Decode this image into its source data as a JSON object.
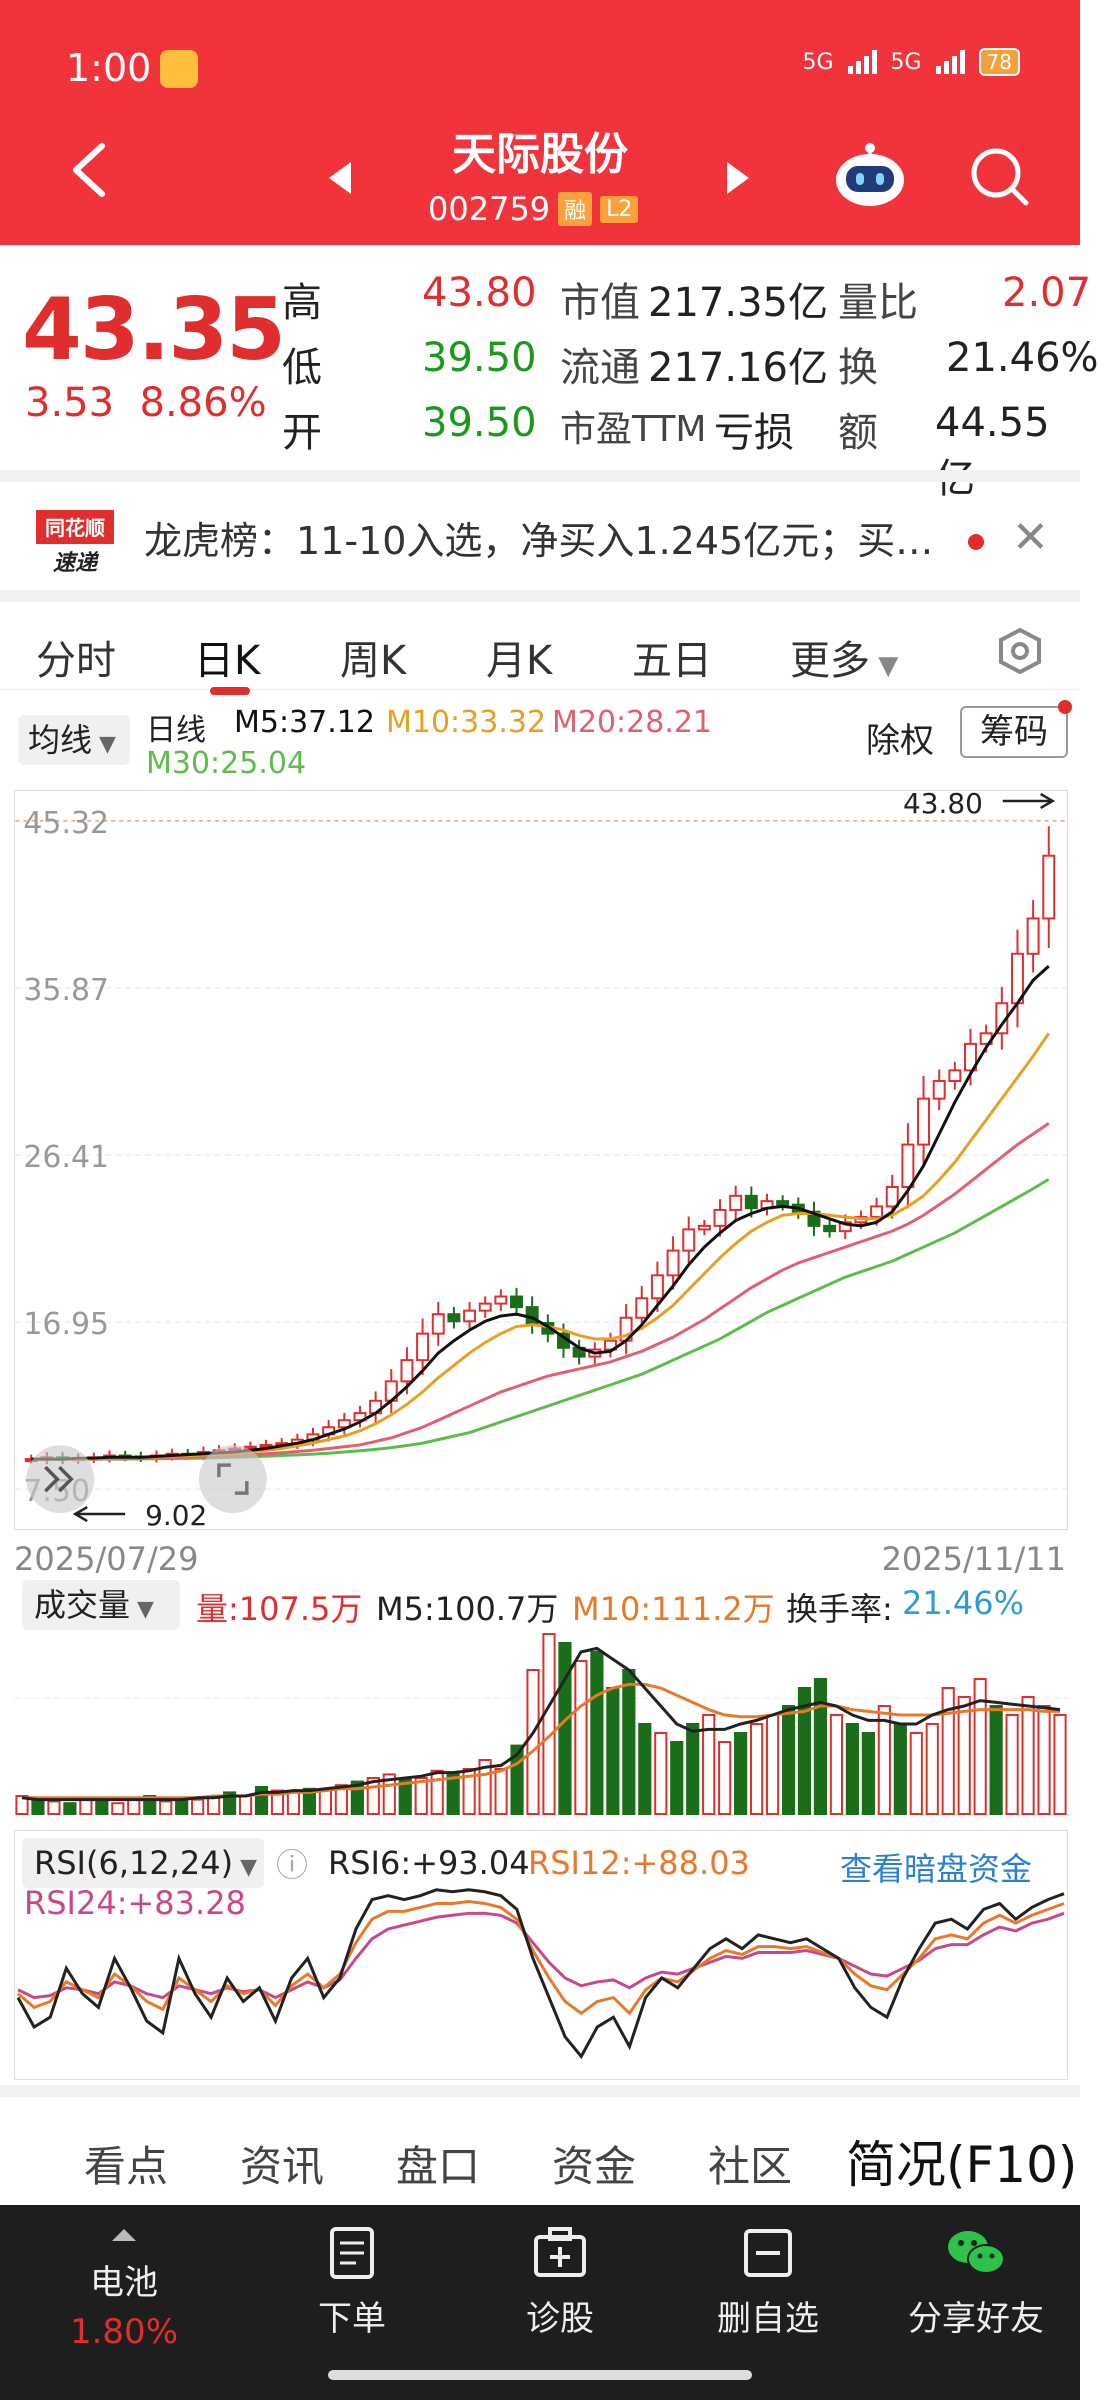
{
  "status": {
    "time": "1:00",
    "net1": "5G",
    "net2": "5G",
    "battery": "78"
  },
  "header": {
    "title": "天际股份",
    "code": "002759",
    "tag1": "融",
    "tag2": "L2"
  },
  "quote": {
    "price": "43.35",
    "change": "3.53",
    "change_pct": "8.86%",
    "high_label": "高",
    "high": "43.80",
    "low_label": "低",
    "low": "39.50",
    "open_label": "开",
    "open": "39.50",
    "mcap_label": "市值",
    "mcap": "217.35亿",
    "float_label": "流通",
    "float": "217.16亿",
    "pe_label": "市盈TTM",
    "pe": "亏损",
    "vr_label": "量比",
    "vr": "2.07",
    "turn_label": "换",
    "turn": "21.46%",
    "amt_label": "额",
    "amt": "44.55亿"
  },
  "news": {
    "logo_top": "同花顺",
    "logo_bottom": "速递",
    "text": "龙虎榜：11-10入选，净买入1.245亿元；买…"
  },
  "tabs": [
    "分时",
    "日K",
    "周K",
    "月K",
    "五日",
    "更多"
  ],
  "ma": {
    "selector": "均线",
    "period": "日线",
    "m5": "M5:37.12",
    "m10": "M10:33.32",
    "m20": "M20:28.21",
    "m30": "M30:25.04",
    "fq": "除权",
    "chip": "筹码"
  },
  "chart_data": {
    "type": "candlestick",
    "title": "",
    "y_ticks": [
      "45.32",
      "35.87",
      "26.41",
      "16.95",
      "7.50"
    ],
    "ylim": [
      7.5,
      45.32
    ],
    "high_marker": "43.80",
    "low_marker": "9.02",
    "start_date": "2025/07/29",
    "end_date": "2025/11/11",
    "close_series": [
      9.2,
      9.3,
      9.2,
      9.25,
      9.3,
      9.4,
      9.35,
      9.3,
      9.4,
      9.5,
      9.45,
      9.6,
      9.7,
      9.8,
      9.9,
      10.0,
      10.1,
      10.3,
      10.6,
      11.0,
      11.4,
      11.8,
      12.5,
      13.6,
      14.8,
      16.3,
      17.4,
      17.0,
      17.6,
      18.0,
      18.4,
      17.8,
      16.9,
      16.3,
      15.5,
      15.0,
      15.4,
      15.9,
      17.2,
      18.3,
      19.6,
      21.0,
      22.2,
      22.4,
      23.3,
      24.1,
      23.4,
      23.8,
      23.6,
      23.2,
      22.4,
      22.1,
      22.6,
      22.9,
      23.5,
      24.6,
      27.0,
      29.6,
      30.6,
      31.2,
      32.7,
      33.3,
      35.0,
      37.8,
      39.8,
      43.35
    ],
    "ma5_series": [
      9.2,
      9.2,
      9.2,
      9.25,
      9.25,
      9.3,
      9.3,
      9.3,
      9.35,
      9.4,
      9.45,
      9.5,
      9.55,
      9.6,
      9.7,
      9.8,
      9.95,
      10.1,
      10.3,
      10.6,
      10.9,
      11.3,
      11.8,
      12.5,
      13.3,
      14.2,
      15.2,
      15.9,
      16.5,
      17.0,
      17.3,
      17.4,
      17.2,
      16.7,
      16.1,
      15.5,
      15.2,
      15.3,
      15.9,
      16.8,
      17.9,
      19.0,
      20.2,
      21.2,
      22.0,
      22.7,
      23.1,
      23.4,
      23.5,
      23.4,
      23.1,
      22.8,
      22.5,
      22.4,
      22.6,
      23.2,
      24.4,
      25.8,
      27.6,
      29.4,
      31.0,
      32.5,
      33.8,
      35.0,
      36.3,
      37.1
    ],
    "ma10_series": [
      9.2,
      9.2,
      9.2,
      9.2,
      9.22,
      9.25,
      9.27,
      9.3,
      9.32,
      9.35,
      9.38,
      9.42,
      9.47,
      9.52,
      9.6,
      9.7,
      9.8,
      9.95,
      10.1,
      10.3,
      10.5,
      10.8,
      11.2,
      11.7,
      12.3,
      13.0,
      13.8,
      14.5,
      15.2,
      15.8,
      16.3,
      16.7,
      16.8,
      16.7,
      16.5,
      16.2,
      16.0,
      16.0,
      16.2,
      16.6,
      17.2,
      17.9,
      18.8,
      19.7,
      20.6,
      21.4,
      22.1,
      22.6,
      23.0,
      23.1,
      23.1,
      23.0,
      22.9,
      22.8,
      22.8,
      23.0,
      23.5,
      24.1,
      25.0,
      26.0,
      27.2,
      28.4,
      29.6,
      30.8,
      32.0,
      33.3
    ],
    "ma20_series": [
      9.2,
      9.2,
      9.2,
      9.2,
      9.2,
      9.21,
      9.22,
      9.23,
      9.25,
      9.27,
      9.3,
      9.33,
      9.36,
      9.4,
      9.44,
      9.5,
      9.56,
      9.63,
      9.7,
      9.8,
      9.9,
      10.0,
      10.2,
      10.4,
      10.7,
      11.0,
      11.4,
      11.8,
      12.2,
      12.6,
      13.0,
      13.3,
      13.6,
      13.9,
      14.1,
      14.3,
      14.5,
      14.7,
      15.0,
      15.3,
      15.7,
      16.1,
      16.6,
      17.1,
      17.7,
      18.3,
      18.9,
      19.4,
      19.9,
      20.3,
      20.6,
      20.9,
      21.2,
      21.5,
      21.8,
      22.1,
      22.5,
      23.0,
      23.6,
      24.2,
      24.9,
      25.6,
      26.3,
      27.0,
      27.6,
      28.2
    ],
    "ma30_series": [
      9.2,
      9.2,
      9.2,
      9.2,
      9.2,
      9.2,
      9.2,
      9.21,
      9.22,
      9.23,
      9.24,
      9.26,
      9.28,
      9.3,
      9.33,
      9.36,
      9.4,
      9.44,
      9.48,
      9.53,
      9.6,
      9.67,
      9.75,
      9.85,
      9.97,
      10.1,
      10.3,
      10.5,
      10.7,
      11.0,
      11.3,
      11.6,
      11.9,
      12.2,
      12.5,
      12.8,
      13.1,
      13.4,
      13.7,
      14.0,
      14.4,
      14.8,
      15.2,
      15.6,
      16.0,
      16.5,
      17.0,
      17.5,
      17.9,
      18.3,
      18.7,
      19.1,
      19.5,
      19.8,
      20.1,
      20.4,
      20.8,
      21.2,
      21.6,
      22.0,
      22.5,
      23.0,
      23.5,
      24.0,
      24.5,
      25.04
    ]
  },
  "volume": {
    "selector": "成交量",
    "vol": "量:107.5万",
    "m5": "M5:100.7万",
    "m10": "M10:111.2万",
    "turn_label": "换手率:",
    "turn": "21.46%",
    "bars": [
      0.1,
      0.08,
      0.07,
      0.06,
      0.08,
      0.07,
      0.06,
      0.08,
      0.1,
      0.07,
      0.09,
      0.08,
      0.1,
      0.12,
      0.1,
      0.15,
      0.13,
      0.12,
      0.14,
      0.13,
      0.16,
      0.18,
      0.2,
      0.22,
      0.19,
      0.2,
      0.24,
      0.22,
      0.25,
      0.3,
      0.25,
      0.38,
      0.8,
      1.0,
      0.95,
      0.85,
      0.9,
      0.7,
      0.8,
      0.5,
      0.45,
      0.4,
      0.5,
      0.55,
      0.4,
      0.45,
      0.5,
      0.55,
      0.6,
      0.7,
      0.75,
      0.55,
      0.5,
      0.45,
      0.6,
      0.5,
      0.45,
      0.5,
      0.7,
      0.65,
      0.75,
      0.6,
      0.55,
      0.65,
      0.6,
      0.55
    ],
    "bar_up": [
      true,
      false,
      true,
      false,
      true,
      false,
      true,
      true,
      false,
      true,
      false,
      true,
      true,
      false,
      true,
      false,
      true,
      true,
      false,
      true,
      true,
      false,
      true,
      true,
      false,
      true,
      true,
      false,
      true,
      true,
      true,
      false,
      true,
      true,
      false,
      true,
      false,
      false,
      false,
      false,
      true,
      false,
      false,
      true,
      true,
      false,
      true,
      true,
      false,
      false,
      false,
      true,
      false,
      false,
      true,
      false,
      true,
      true,
      true,
      true,
      true,
      false,
      true,
      true,
      true,
      true
    ],
    "m5_line": [
      0.09,
      0.08,
      0.08,
      0.08,
      0.08,
      0.08,
      0.08,
      0.08,
      0.08,
      0.08,
      0.08,
      0.09,
      0.09,
      0.1,
      0.1,
      0.12,
      0.12,
      0.13,
      0.13,
      0.14,
      0.15,
      0.16,
      0.18,
      0.19,
      0.2,
      0.21,
      0.23,
      0.23,
      0.24,
      0.26,
      0.27,
      0.33,
      0.45,
      0.6,
      0.75,
      0.9,
      0.92,
      0.86,
      0.8,
      0.7,
      0.6,
      0.5,
      0.46,
      0.47,
      0.47,
      0.5,
      0.52,
      0.55,
      0.58,
      0.6,
      0.62,
      0.6,
      0.55,
      0.52,
      0.52,
      0.5,
      0.5,
      0.55,
      0.58,
      0.6,
      0.63,
      0.62,
      0.61,
      0.6,
      0.59,
      0.58
    ],
    "m10_line": [
      0.09,
      0.09,
      0.09,
      0.09,
      0.09,
      0.09,
      0.09,
      0.09,
      0.09,
      0.09,
      0.09,
      0.09,
      0.1,
      0.1,
      0.1,
      0.11,
      0.11,
      0.12,
      0.12,
      0.13,
      0.14,
      0.14,
      0.15,
      0.16,
      0.17,
      0.18,
      0.19,
      0.2,
      0.21,
      0.22,
      0.24,
      0.28,
      0.35,
      0.43,
      0.52,
      0.6,
      0.66,
      0.7,
      0.72,
      0.72,
      0.7,
      0.66,
      0.62,
      0.58,
      0.55,
      0.54,
      0.54,
      0.55,
      0.56,
      0.57,
      0.6,
      0.6,
      0.58,
      0.57,
      0.56,
      0.55,
      0.55,
      0.55,
      0.56,
      0.57,
      0.58,
      0.58,
      0.58,
      0.58,
      0.57,
      0.57
    ]
  },
  "rsi": {
    "selector": "RSI(6,12,24)",
    "rsi6": "RSI6:+93.04",
    "rsi12": "RSI12:+88.03",
    "rsi24": "RSI24:+83.28",
    "link": "查看暗盘资金",
    "r6": [
      40,
      25,
      30,
      55,
      42,
      35,
      60,
      45,
      28,
      22,
      60,
      42,
      30,
      50,
      38,
      45,
      28,
      50,
      60,
      40,
      50,
      75,
      90,
      92,
      90,
      92,
      95,
      94,
      95,
      94,
      92,
      85,
      60,
      40,
      20,
      10,
      25,
      30,
      15,
      40,
      50,
      45,
      55,
      65,
      70,
      65,
      72,
      70,
      68,
      70,
      65,
      60,
      45,
      35,
      30,
      50,
      65,
      78,
      80,
      75,
      85,
      88,
      80,
      86,
      90,
      93
    ],
    "r12": [
      42,
      35,
      38,
      48,
      44,
      40,
      52,
      46,
      38,
      34,
      50,
      44,
      38,
      46,
      42,
      44,
      36,
      46,
      52,
      45,
      52,
      68,
      80,
      84,
      84,
      86,
      88,
      88,
      89,
      88,
      86,
      80,
      64,
      50,
      38,
      32,
      38,
      40,
      32,
      44,
      50,
      48,
      54,
      60,
      64,
      62,
      66,
      66,
      65,
      66,
      63,
      60,
      52,
      46,
      44,
      52,
      60,
      70,
      72,
      70,
      78,
      82,
      78,
      82,
      85,
      88
    ],
    "r24": [
      44,
      40,
      41,
      45,
      44,
      42,
      48,
      46,
      42,
      40,
      46,
      44,
      42,
      45,
      43,
      44,
      40,
      44,
      48,
      45,
      49,
      60,
      70,
      75,
      77,
      79,
      81,
      82,
      83,
      83,
      82,
      78,
      68,
      58,
      50,
      46,
      48,
      49,
      45,
      50,
      53,
      52,
      55,
      58,
      61,
      60,
      63,
      63,
      63,
      64,
      62,
      60,
      56,
      52,
      51,
      55,
      59,
      65,
      67,
      67,
      72,
      76,
      74,
      78,
      80,
      83
    ]
  },
  "bottom_tabs": [
    "看点",
    "资讯",
    "盘口",
    "资金",
    "社区",
    "简况(F10)"
  ],
  "toolbar": {
    "battery_label": "电池",
    "battery_value": "1.80%",
    "order": "下单",
    "diag": "诊股",
    "remove": "删自选",
    "share": "分享好友"
  },
  "colors": {
    "header": "#f1343c",
    "up": "#e02e2e",
    "down": "#1a6e1a",
    "ma5": "#111111",
    "ma10": "#e8a020",
    "ma20": "#e06070",
    "ma30": "#5cbd4a"
  }
}
